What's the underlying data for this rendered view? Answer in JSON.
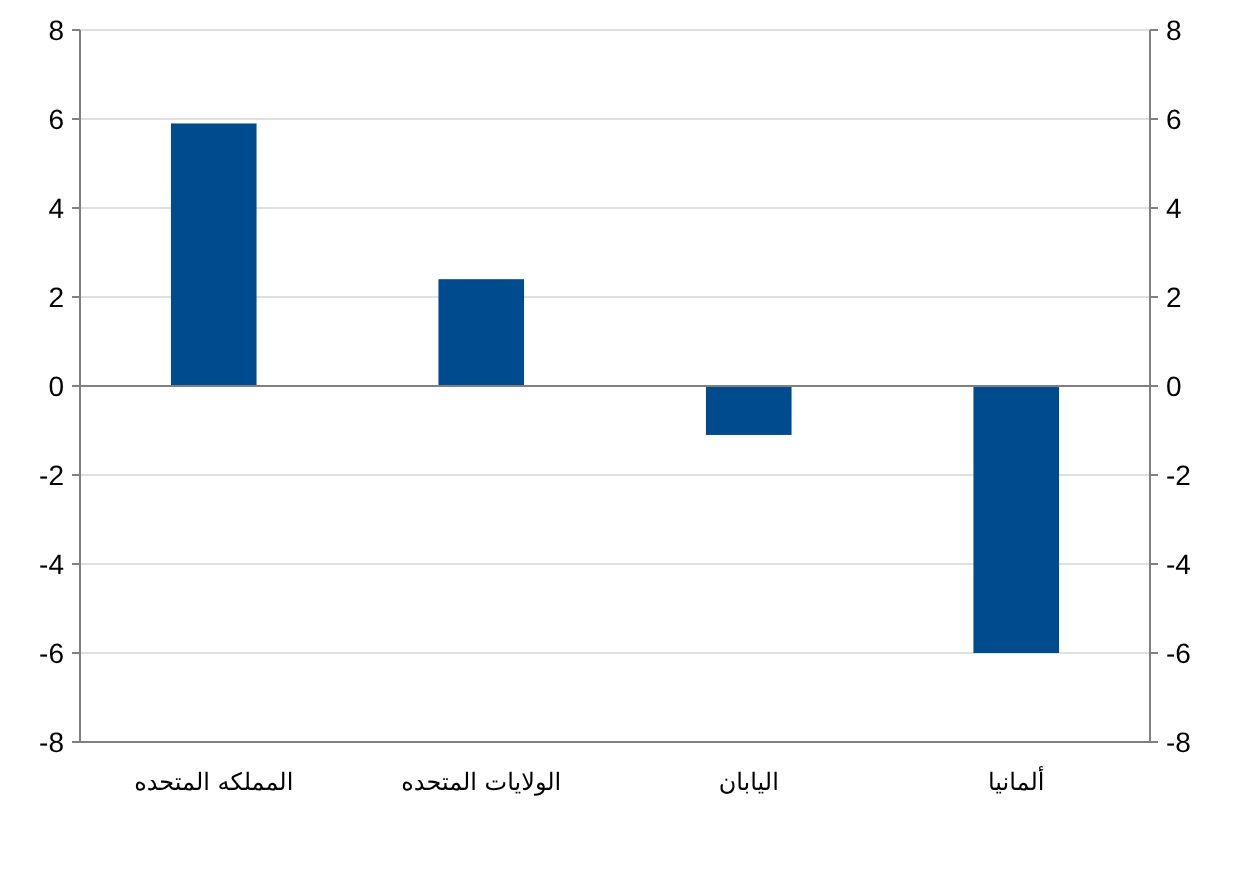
{
  "chart_data": {
    "type": "bar",
    "categories": [
      "المملكه المتحده",
      "الولايات المتحده",
      "اليابان",
      "ألمانيا"
    ],
    "series": [
      {
        "color": "#004b8d",
        "values": [
          5.9,
          2.4,
          -1.1,
          -6.0
        ]
      }
    ],
    "ylim": [
      -8,
      8
    ],
    "yticks": [
      -8,
      -6,
      -4,
      -2,
      0,
      2,
      4,
      6,
      8
    ],
    "y2lim": [
      -8,
      8
    ],
    "y2ticks": [
      -8,
      -6,
      -4,
      -2,
      0,
      2,
      4,
      6,
      8
    ],
    "grid": "y"
  }
}
